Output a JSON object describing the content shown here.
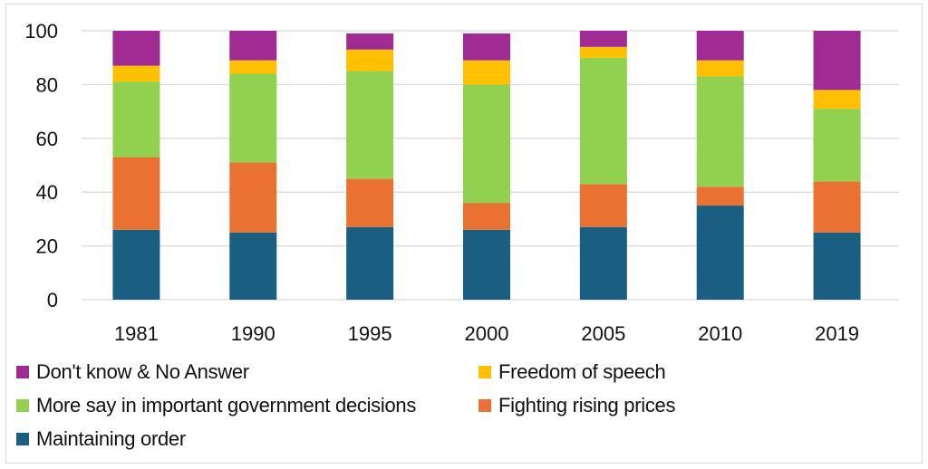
{
  "chart_data": {
    "type": "bar",
    "stacked": true,
    "title": "",
    "xlabel": "",
    "ylabel": "",
    "ylim": [
      0,
      100
    ],
    "yticks": [
      0,
      20,
      40,
      60,
      80,
      100
    ],
    "grid": true,
    "legend_position": "bottom",
    "categories": [
      "1981",
      "1990",
      "1995",
      "2000",
      "2005",
      "2010",
      "2019"
    ],
    "series": [
      {
        "name": "Maintaining order",
        "color": "#1a5f82",
        "values": [
          26,
          25,
          27,
          26,
          27,
          35,
          25
        ]
      },
      {
        "name": "Fighting rising prices",
        "color": "#e97132",
        "values": [
          27,
          26,
          18,
          10,
          16,
          7,
          19
        ]
      },
      {
        "name": "More say in important government decisions",
        "color": "#92d050",
        "values": [
          28,
          33,
          40,
          44,
          47,
          41,
          27
        ]
      },
      {
        "name": "Freedom of speech",
        "color": "#ffc000",
        "values": [
          6,
          5,
          8,
          9,
          4,
          6,
          7
        ]
      },
      {
        "name": "Don't know & No Answer",
        "color": "#a02b93",
        "values": [
          13,
          11,
          6,
          10,
          6,
          11,
          22
        ]
      }
    ],
    "legend_order": [
      "Don't know & No Answer",
      "Freedom of speech",
      "More say in important government decisions",
      "Fighting rising prices",
      "Maintaining order"
    ]
  }
}
